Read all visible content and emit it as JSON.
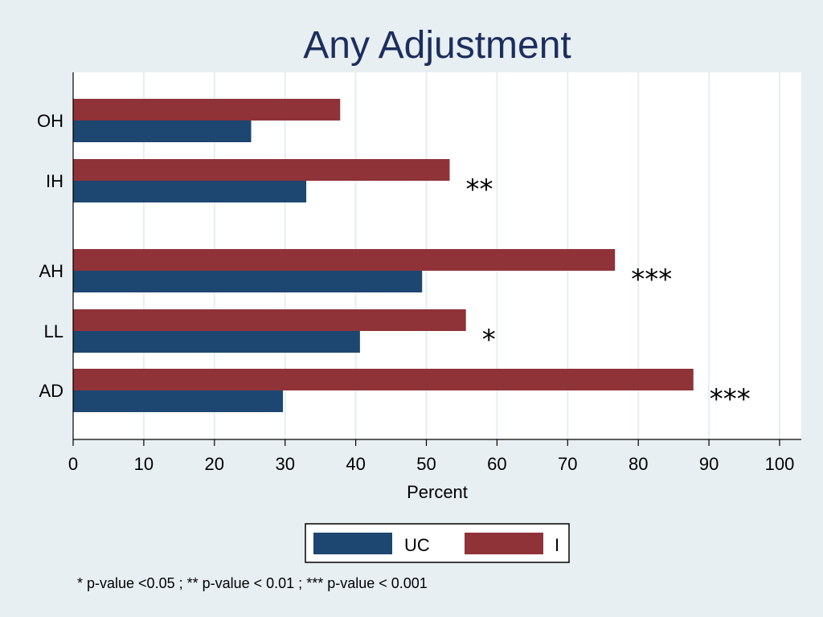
{
  "chart_data": {
    "type": "bar",
    "orientation": "horizontal",
    "title": "Any Adjustment",
    "xlabel": "Percent",
    "ylabel": "",
    "xlim": [
      0,
      100
    ],
    "xticks": [
      "0",
      "10",
      "20",
      "30",
      "40",
      "50",
      "60",
      "70",
      "80",
      "90",
      "100"
    ],
    "grid": true,
    "categories": [
      "OH",
      "IH",
      "AH",
      "LL",
      "AD"
    ],
    "series": [
      {
        "name": "UC",
        "color": "#1d4670",
        "values": [
          25.2,
          33.0,
          49.4,
          40.6,
          29.7
        ]
      },
      {
        "name": "I",
        "color": "#8f3339",
        "values": [
          37.8,
          53.3,
          76.7,
          55.6,
          87.8
        ]
      }
    ],
    "significance": [
      "",
      "**",
      "***",
      "*",
      "***"
    ],
    "legend_position": "bottom",
    "footnote": "* p-value <0.05 ; ** p-value < 0.01 ; *** p-value < 0.001"
  }
}
